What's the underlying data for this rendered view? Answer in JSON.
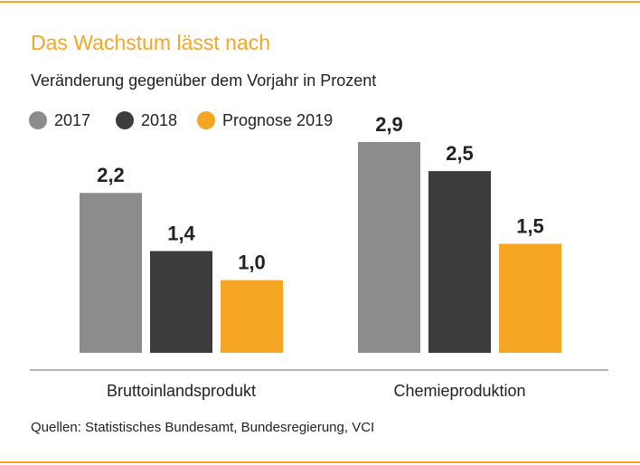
{
  "title": "Das Wachstum lässt nach",
  "subtitle": "Veränderung gegenüber dem Vorjahr in Prozent",
  "source": "Quellen: Statistisches Bundesamt, Bundesregierung, VCI",
  "colors": {
    "accent": "#f5a623",
    "rule": "#f5a623"
  },
  "chart_data": {
    "type": "bar",
    "title": "Das Wachstum lässt nach",
    "subtitle": "Veränderung gegenüber dem Vorjahr in Prozent",
    "categories": [
      "Bruttoinlandsprodukt",
      "Chemieproduktion"
    ],
    "series": [
      {
        "name": "2017",
        "color": "#8c8c8c",
        "values": [
          2.2,
          2.9
        ],
        "labels": [
          "2,2",
          "2,9"
        ]
      },
      {
        "name": "2018",
        "color": "#3c3c3c",
        "values": [
          1.4,
          2.5
        ],
        "labels": [
          "1,4",
          "2,5"
        ]
      },
      {
        "name": "Prognose 2019",
        "color": "#f5a623",
        "values": [
          1.0,
          1.5
        ],
        "labels": [
          "1,0",
          "1,5"
        ]
      }
    ],
    "ylim": [
      0,
      2.9
    ],
    "grid": false,
    "legend": "top-left"
  }
}
